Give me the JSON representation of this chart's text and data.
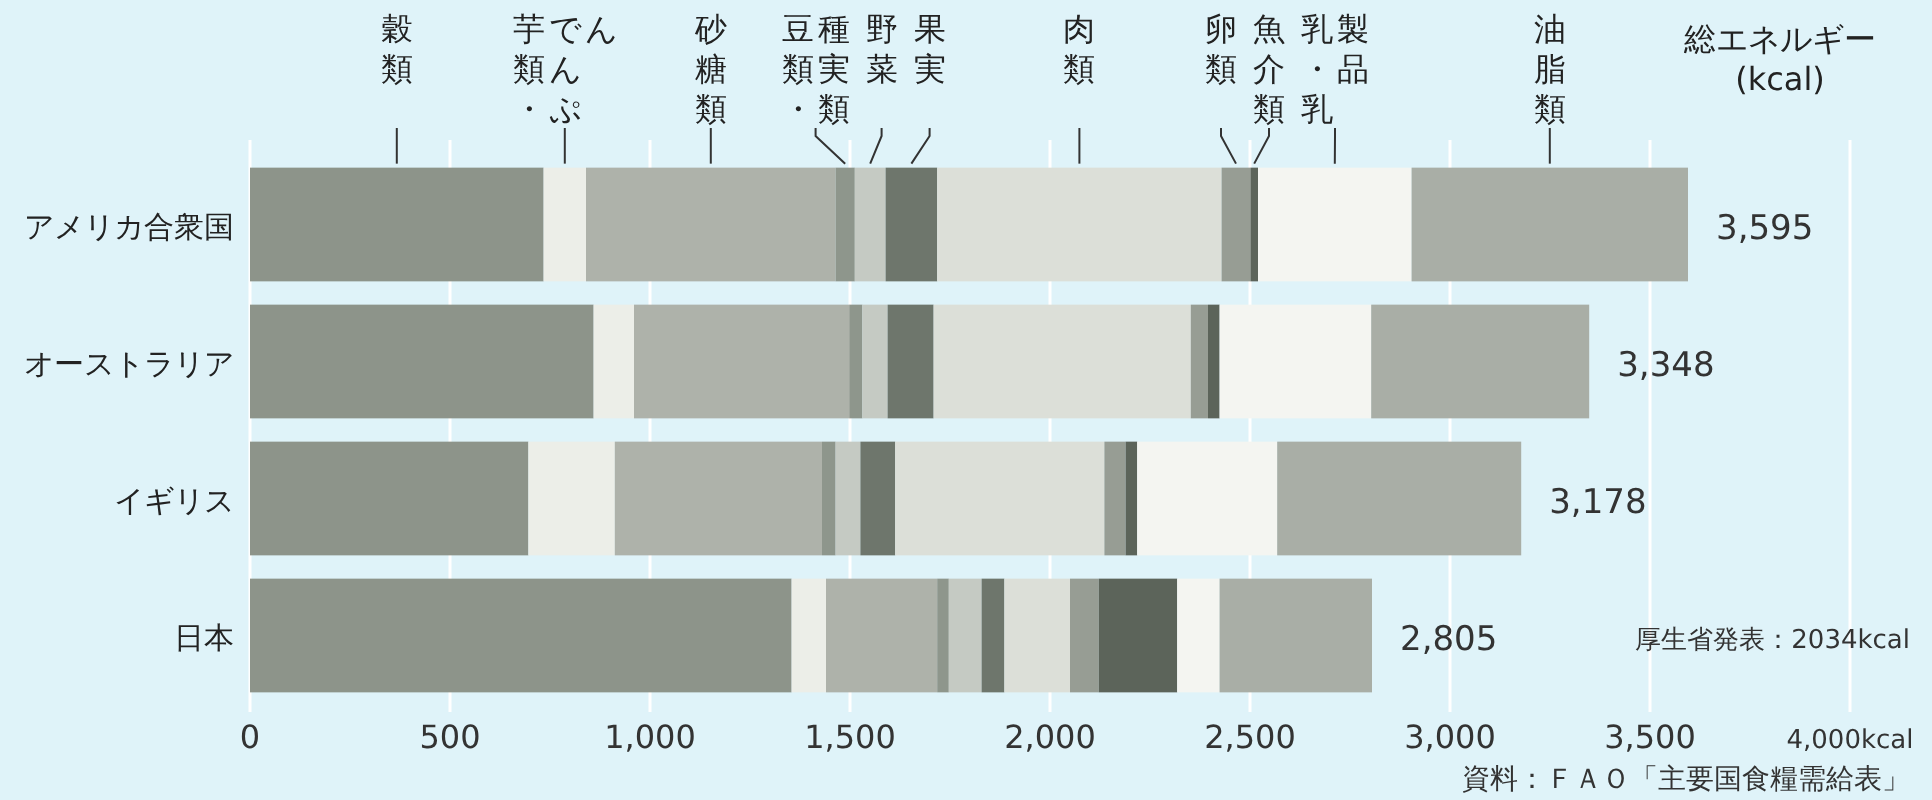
{
  "chart_data": {
    "type": "bar",
    "orientation": "horizontal",
    "stacked": true,
    "categories": [
      "アメリカ合衆国",
      "オーストラリア",
      "イギリス",
      "日本"
    ],
    "series": [
      {
        "name": "穀類",
        "color": "#8d948a",
        "values": [
          734,
          859,
          696,
          1354
        ]
      },
      {
        "name": "芋類・でんぷん",
        "color": "#eceee8",
        "values": [
          106,
          101,
          216,
          86
        ]
      },
      {
        "name": "砂糖類",
        "color": "#aeb2aa",
        "values": [
          624,
          538,
          518,
          278
        ]
      },
      {
        "name": "豆類・種実類",
        "color": "#8e968c",
        "values": [
          48,
          33,
          34,
          29
        ]
      },
      {
        "name": "野菜",
        "color": "#c5cac3",
        "values": [
          77,
          63,
          62,
          82
        ]
      },
      {
        "name": "果実",
        "color": "#6e766c",
        "values": [
          129,
          115,
          87,
          57
        ]
      },
      {
        "name": "肉類",
        "color": "#dcdfd8",
        "values": [
          711,
          643,
          523,
          164
        ]
      },
      {
        "name": "卵類",
        "color": "#979d94",
        "values": [
          72,
          43,
          53,
          72
        ]
      },
      {
        "name": "魚介類",
        "color": "#5c645a",
        "values": [
          19,
          29,
          29,
          196
        ]
      },
      {
        "name": "乳・乳製品",
        "color": "#f4f5f1",
        "values": [
          384,
          379,
          350,
          106
        ]
      },
      {
        "name": "油脂類",
        "color": "#a9aea6",
        "values": [
          691,
          545,
          610,
          381
        ]
      }
    ],
    "totals": [
      "3,595",
      "3,348",
      "3,178",
      "2,805"
    ],
    "xlim": [
      0,
      4000
    ],
    "xticks": [
      0,
      500,
      {
        "value": 1000,
        "label": "1,000"
      },
      {
        "value": 1500,
        "label": "1,500"
      },
      {
        "value": 2000,
        "label": "2,000"
      },
      {
        "value": 2500,
        "label": "2,500"
      },
      {
        "value": 3000,
        "label": "3,000"
      },
      {
        "value": 3500,
        "label": "3,500"
      },
      {
        "value": 4000,
        "label": "4,000kcal"
      }
    ],
    "grid": "x",
    "annotations": [
      "総エネルギー (kcal)",
      "厚生省発表：2034kcal",
      "資料：ＦＡＯ「主要国食糧需給表」"
    ]
  }
}
